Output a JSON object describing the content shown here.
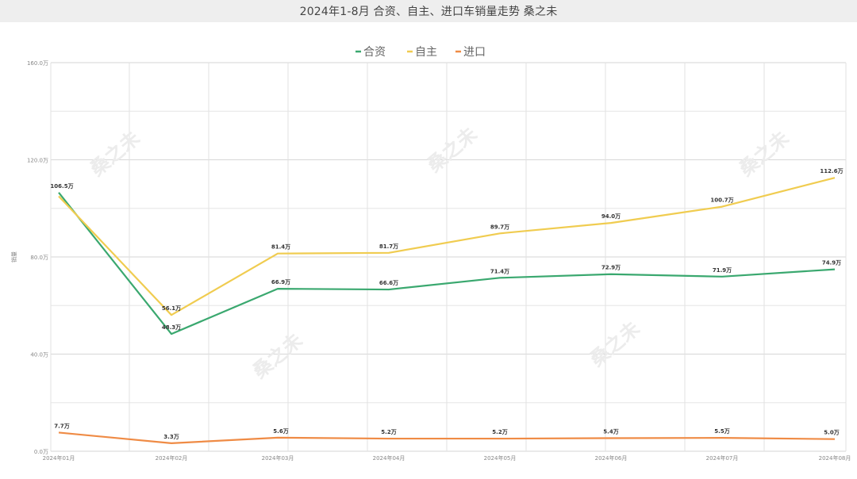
{
  "title": "2024年1-8月 合资、自主、进口车销量走势 桑之未",
  "watermark": "桑之未",
  "chart_data": {
    "type": "line",
    "categories": [
      "2024年01月",
      "2024年02月",
      "2024年03月",
      "2024年04月",
      "2024年05月",
      "2024年06月",
      "2024年07月",
      "2024年08月"
    ],
    "ylabel": "销量",
    "y_ticks": [
      "0.0万",
      "40.0万",
      "80.0万",
      "120.0万",
      "160.0万"
    ],
    "ylim": [
      0,
      160
    ],
    "grid": true,
    "legend_position": "top-center",
    "series": [
      {
        "name": "合资",
        "color": "#3aa86f",
        "values": [
          106.5,
          48.3,
          66.9,
          66.6,
          71.4,
          72.9,
          71.9,
          74.9
        ],
        "labels": [
          "106.5万",
          "48.3万",
          "66.9万",
          "66.6万",
          "71.4万",
          "72.9万",
          "71.9万",
          "74.9万"
        ]
      },
      {
        "name": "自主",
        "color": "#f0cc50",
        "values": [
          105.0,
          56.1,
          81.4,
          81.7,
          89.7,
          94.0,
          100.7,
          112.6
        ],
        "labels": [
          "",
          "56.1万",
          "81.4万",
          "81.7万",
          "89.7万",
          "94.0万",
          "100.7万",
          "112.6万"
        ]
      },
      {
        "name": "进口",
        "color": "#ef8b45",
        "values": [
          7.7,
          3.3,
          5.6,
          5.2,
          5.2,
          5.4,
          5.5,
          5.0
        ],
        "labels": [
          "7.7万",
          "3.3万",
          "5.6万",
          "5.2万",
          "5.2万",
          "5.4万",
          "5.5万",
          "5.0万"
        ]
      }
    ]
  }
}
